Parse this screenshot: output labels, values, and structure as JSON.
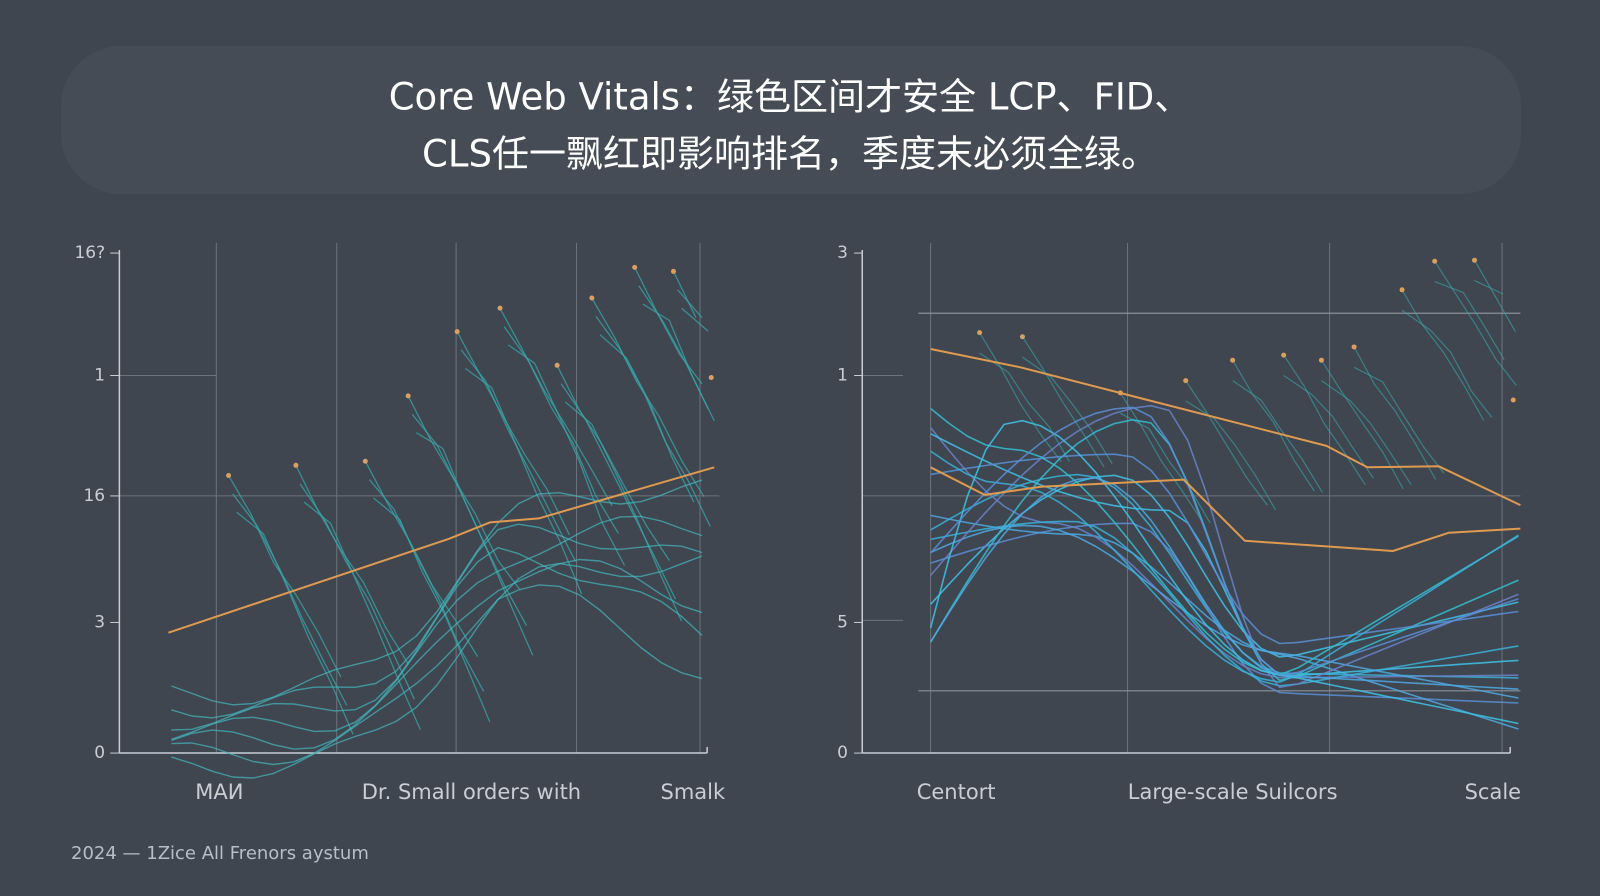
{
  "title": {
    "line1": "Core Web Vitals：绿色区间才安全 LCP、FID、",
    "line2": "CLS任一飘红即影响排名，季度末必须全绿。"
  },
  "panels": [
    {
      "y_labels": [
        "16?",
        "1",
        "16",
        "3",
        "0"
      ],
      "x_labels": [
        "MAИ",
        "Dr. Small orders with",
        "Smalk"
      ]
    },
    {
      "y_labels": [
        "3",
        "1",
        "5",
        "0"
      ],
      "x_labels": [
        "Centort",
        "Large-scale Suilcors",
        "Scale"
      ]
    }
  ],
  "footer": "2024 — 1Zice All Frenors aystum"
}
